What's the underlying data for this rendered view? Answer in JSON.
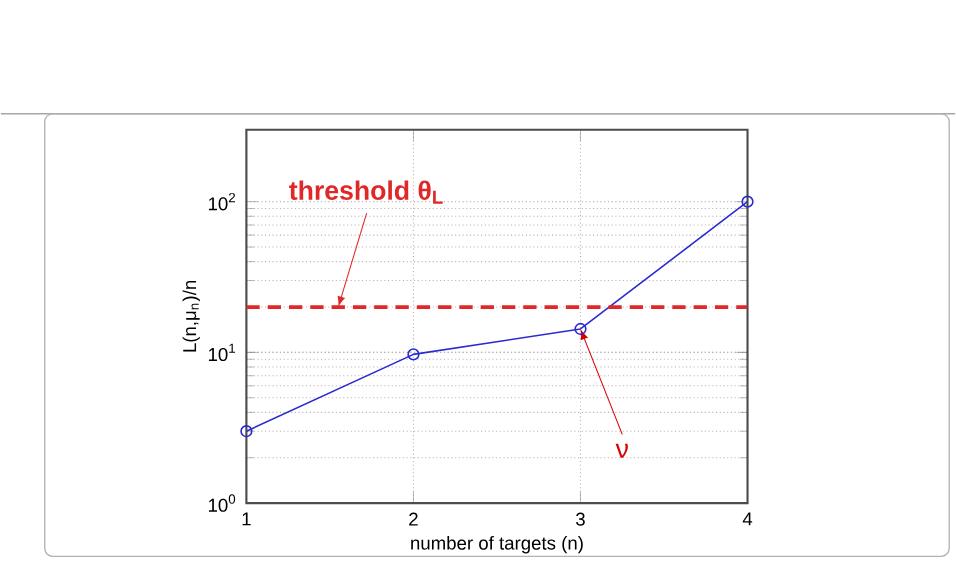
{
  "chart_data": {
    "type": "line",
    "xlabel": "number of targets (n)",
    "ylabel": "L(n,μ$_{n}$)/n",
    "x": [
      1,
      2,
      3,
      4
    ],
    "series": [
      {
        "color": "#2b2bd0",
        "values": [
          3.0,
          9.7,
          14.3,
          100
        ]
      }
    ],
    "marker": "circle",
    "line_style": "solid",
    "log": "y",
    "grid": true,
    "xlim": [
      1,
      4
    ],
    "xticks": [
      1,
      2,
      3,
      4
    ],
    "ylim": [
      1,
      300
    ],
    "yticks": [
      {
        "value": 1,
        "label": "10$^{0}$"
      },
      {
        "value": 10,
        "label": "10$^{1}$"
      },
      {
        "value": 100,
        "label": "10$^{2}$"
      }
    ],
    "ref_lines": [
      {
        "axis": "y",
        "value": 20,
        "label": "**threshold θ$_{L}$**",
        "color": "#e02828",
        "line_style": "dashed"
      }
    ],
    "annotations": [
      {
        "text": "ν",
        "x": 3,
        "y": 14.3
      }
    ]
  }
}
